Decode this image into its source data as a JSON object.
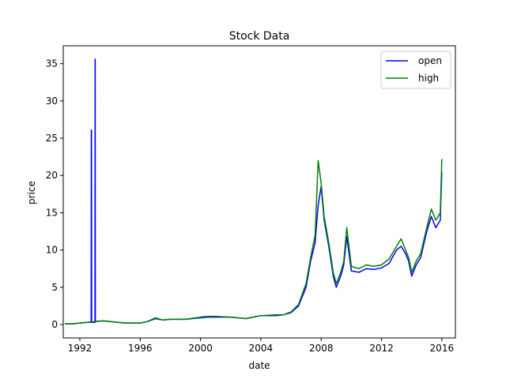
{
  "chart_data": {
    "type": "line",
    "title": "Stock Data",
    "xlabel": "date",
    "ylabel": "price",
    "xlim": [
      1990.9,
      2016.9
    ],
    "ylim": [
      -1.8,
      37.4
    ],
    "x_ticks": [
      1992,
      1996,
      2000,
      2004,
      2008,
      2012,
      2016
    ],
    "y_ticks": [
      0,
      5,
      10,
      15,
      20,
      25,
      30,
      35
    ],
    "legend_position": "top-right",
    "series": [
      {
        "name": "open",
        "color": "#0000ff",
        "x": [
          1991.0,
          1991.5,
          1992.0,
          1992.5,
          1992.75,
          1992.76,
          1992.77,
          1992.78,
          1993.0,
          1993.01,
          1993.02,
          1993.03,
          1993.5,
          1994.0,
          1995.0,
          1996.0,
          1996.5,
          1997.0,
          1997.5,
          1998.0,
          1999.0,
          2000.0,
          2000.5,
          2001.0,
          2002.0,
          2003.0,
          2003.5,
          2004.0,
          2005.0,
          2005.5,
          2006.0,
          2006.5,
          2007.0,
          2007.3,
          2007.6,
          2007.8,
          2008.0,
          2008.2,
          2008.5,
          2008.8,
          2009.0,
          2009.3,
          2009.5,
          2009.7,
          2010.0,
          2010.5,
          2011.0,
          2011.5,
          2012.0,
          2012.5,
          2013.0,
          2013.3,
          2013.6,
          2013.8,
          2014.0,
          2014.3,
          2014.6,
          2015.0,
          2015.3,
          2015.6,
          2015.9,
          2016.0
        ],
        "values": [
          0.1,
          0.1,
          0.2,
          0.3,
          0.3,
          26.1,
          26.1,
          0.3,
          0.3,
          35.6,
          35.6,
          0.4,
          0.5,
          0.4,
          0.2,
          0.2,
          0.4,
          0.8,
          0.6,
          0.7,
          0.7,
          0.9,
          1.0,
          1.0,
          1.0,
          0.8,
          1.0,
          1.2,
          1.2,
          1.3,
          1.6,
          2.5,
          5.0,
          8.5,
          11.0,
          16.0,
          18.5,
          14.0,
          10.5,
          6.5,
          5.0,
          6.5,
          8.0,
          11.8,
          7.2,
          7.0,
          7.5,
          7.4,
          7.6,
          8.2,
          10.0,
          10.5,
          9.5,
          8.5,
          6.5,
          8.0,
          9.0,
          12.5,
          14.5,
          13.0,
          14.0,
          20.5
        ]
      },
      {
        "name": "high",
        "color": "#008000",
        "x": [
          1991.0,
          1991.5,
          1992.0,
          1992.5,
          1993.0,
          1993.5,
          1994.0,
          1995.0,
          1996.0,
          1996.5,
          1997.0,
          1997.5,
          1998.0,
          1999.0,
          2000.0,
          2000.5,
          2001.0,
          2002.0,
          2003.0,
          2003.5,
          2004.0,
          2005.0,
          2005.5,
          2006.0,
          2006.5,
          2007.0,
          2007.3,
          2007.6,
          2007.8,
          2008.0,
          2008.2,
          2008.5,
          2008.8,
          2009.0,
          2009.3,
          2009.5,
          2009.7,
          2010.0,
          2010.5,
          2011.0,
          2011.5,
          2012.0,
          2012.5,
          2013.0,
          2013.3,
          2013.6,
          2013.8,
          2014.0,
          2014.3,
          2014.6,
          2015.0,
          2015.3,
          2015.6,
          2015.9,
          2016.0
        ],
        "values": [
          0.1,
          0.1,
          0.2,
          0.3,
          0.4,
          0.5,
          0.4,
          0.2,
          0.2,
          0.4,
          0.9,
          0.6,
          0.7,
          0.7,
          1.0,
          1.1,
          1.1,
          1.0,
          0.8,
          1.0,
          1.2,
          1.3,
          1.3,
          1.7,
          2.7,
          5.5,
          9.0,
          12.0,
          22.0,
          19.0,
          14.5,
          11.0,
          7.0,
          5.5,
          7.0,
          8.5,
          13.0,
          7.8,
          7.5,
          8.0,
          7.8,
          8.0,
          8.8,
          10.5,
          11.5,
          10.0,
          9.0,
          7.0,
          8.5,
          9.5,
          13.0,
          15.5,
          14.0,
          15.0,
          22.2
        ]
      }
    ]
  }
}
